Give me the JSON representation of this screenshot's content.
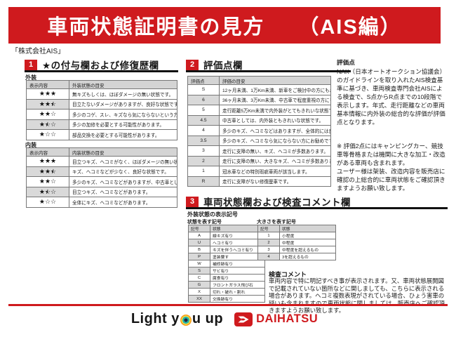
{
  "header": {
    "title": "車両状態証明書の見方",
    "edition": "（AIS編）"
  },
  "source_label": "「株式会社AIS」",
  "colors": {
    "accent_red": "#cf1a1e",
    "table_header_gray": "#d4d4d4",
    "row_shade_gray": "#d9d9d9",
    "slogan_ring_orange": "#f59f1e",
    "slogan_ring_yellow": "#f8e04a",
    "slogan_ring_teal": "#27b3a4"
  },
  "section1": {
    "number": "1",
    "title": "★の付与欄および修復歴欄",
    "exterior": {
      "label": "外装",
      "columns": [
        "表示内容",
        "外装状態の目安"
      ],
      "rows": [
        {
          "stars": 3,
          "text": "無キズもしくは、ほぼダメージの無い状態です。"
        },
        {
          "stars": 2.5,
          "text": "目立たないダメージがありますが、良好な状態です。"
        },
        {
          "stars": 2,
          "text": "多少のコゲ、スレ、キズなら気にならないという方にお勧めです。"
        },
        {
          "stars": 1.5,
          "text": "多少の加修を必要とする可能性があります。"
        },
        {
          "stars": 1,
          "text": "部品交換を必要とする可能性があります。"
        }
      ]
    },
    "interior": {
      "label": "内装",
      "columns": [
        "表示内容",
        "内装状態の目安"
      ],
      "rows": [
        {
          "stars": 3,
          "text": "目立つキズ、ヘコミがなく、ほぼダメージの無い状態です。"
        },
        {
          "stars": 2.5,
          "text": "キズ、ヘコミなどが少なく、良好な状態です。"
        },
        {
          "stars": 2,
          "text": "多少のキズ、ヘコミなどがありますが、中古車としては標準です。"
        },
        {
          "stars": 1.5,
          "text": "目立つキズ、ヘコミなどがあります。"
        },
        {
          "stars": 1,
          "text": "全体にキズ、ヘコミなどがあります。"
        }
      ]
    }
  },
  "section2": {
    "number": "2",
    "title": "評価点欄",
    "table": {
      "columns": [
        "評価点",
        "評価の目安"
      ],
      "rows": [
        [
          "S",
          "12ヶ月未満、1万Km未満、新車をご検討中の方にもお勧めです。"
        ],
        [
          "6",
          "36ヶ月未満、3万Km未満、中古車で程度重視の方にもお勧めです。"
        ],
        [
          "5",
          "走行距離5万Km未満で内外装がとてもきれいな状態です。"
        ],
        [
          "4.5",
          "中古車としては、内外装ともきれいな状態です。"
        ],
        [
          "4",
          "多少のキズ、ヘコミなどはありますが、全体的には良好です。"
        ],
        [
          "3.5",
          "多少のキズ、ヘコミなら気にならない方にお勧めです。"
        ],
        [
          "3",
          "走行に支障の無い、キズ、ヘコミが多数あります。"
        ],
        [
          "2",
          "走行に支障の無い、大きなキズ、ヘコミが多数あります。"
        ],
        [
          "1",
          "冠水車などの特別瑕疵車両が該当します。"
        ],
        [
          "R",
          "走行に支障がない修復歴車です。"
        ]
      ]
    },
    "sidebar": {
      "label": "評価点",
      "body": "NAK（日本オートオークション協議会）のガイドラインを取り入れたAIS検査基準に基づき、車両検査専門会社AISによる検査で、S点からR点までの10段階で表示します。年式、走行距離などの車両基本情報に内外装の総合的な評価が評価点となります。",
      "note1": "※ 評価2点にはキャンピングカー、競技車等骨格または機関に大きな加工・改造がある車両も含まれます。",
      "note2": "ユーザー様は架装、改造内容を販売店に確認の上総合的に車両状態をご確認頂きますようお願い致します。"
    }
  },
  "section3": {
    "number": "3",
    "title": "車両状態欄および検査コメント欄",
    "legend_label": "外装状態の表示記号",
    "state_table": {
      "label": "状態を表す記号",
      "columns": [
        "記号",
        "状態"
      ],
      "rows": [
        [
          "A",
          "線キズ有り"
        ],
        [
          "U",
          "ヘコミ有り"
        ],
        [
          "B",
          "キズを伴うヘコミ有り"
        ],
        [
          "P",
          "塗装要す"
        ],
        [
          "W",
          "補修跡有り"
        ],
        [
          "S",
          "サビ有り"
        ],
        [
          "C",
          "腐食有り"
        ],
        [
          "G",
          "フロントガラス飛び石"
        ],
        [
          "X",
          "切れ・破れ・割れ"
        ],
        [
          "XX",
          "交換跡有り"
        ]
      ]
    },
    "size_table": {
      "label": "大きさを表す記号",
      "columns": [
        "記号",
        "状態"
      ],
      "rows": [
        [
          "1",
          "小程度"
        ],
        [
          "2",
          "中程度"
        ],
        [
          "3",
          "中程度を超えるもの"
        ],
        [
          "4",
          "3を超えるもの"
        ]
      ]
    },
    "comment": {
      "label": "検査コメント",
      "body": "車両内容で特に明記すべき事が表示されます。又、車両状態展開図で記載されていない箇所などに関しましても、こちらに表示される場合があります。ヘコミ複数表現がされている場合、ひょう害車の疑いも含まれますので車両状態に関しましては、販売店へご確認頂きますようお願い致します。"
    }
  },
  "footer": {
    "slogan_pre": "Light y",
    "slogan_post": "u up",
    "brand": "DAIHATSU"
  }
}
